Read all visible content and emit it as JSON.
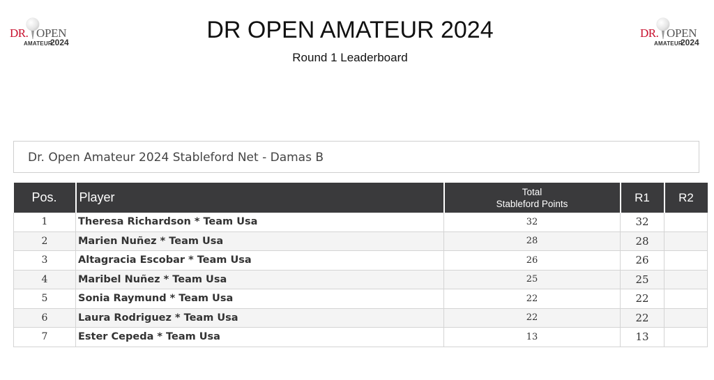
{
  "logo": {
    "dr": "DR.",
    "open": "OPEN",
    "amateur": "AMATEUR",
    "year": "2024"
  },
  "header": {
    "title": "DR OPEN AMATEUR 2024",
    "subtitle": "Round 1 Leaderboard"
  },
  "section": {
    "title": "Dr. Open Amateur 2024 Stableford Net - Damas B"
  },
  "table": {
    "columns": {
      "pos": "Pos.",
      "player": "Player",
      "total_line1": "Total",
      "total_line2": "Stableford Points",
      "r1": "R1",
      "r2": "R2"
    },
    "rows": [
      {
        "pos": "1",
        "player": "Theresa Richardson * Team Usa",
        "total": "32",
        "r1": "32",
        "r2": ""
      },
      {
        "pos": "2",
        "player": "Marien Nuñez * Team Usa",
        "total": "28",
        "r1": "28",
        "r2": ""
      },
      {
        "pos": "3",
        "player": "Altagracia Escobar * Team Usa",
        "total": "26",
        "r1": "26",
        "r2": ""
      },
      {
        "pos": "4",
        "player": "Maribel Nuñez * Team Usa",
        "total": "25",
        "r1": "25",
        "r2": ""
      },
      {
        "pos": "5",
        "player": "Sonia Raymund * Team Usa",
        "total": "22",
        "r1": "22",
        "r2": ""
      },
      {
        "pos": "6",
        "player": "Laura Rodriguez * Team Usa",
        "total": "22",
        "r1": "22",
        "r2": ""
      },
      {
        "pos": "7",
        "player": "Ester Cepeda * Team Usa",
        "total": "13",
        "r1": "13",
        "r2": ""
      }
    ]
  },
  "colors": {
    "header_bg": "#3a3a3c",
    "brand_red": "#c8102e"
  }
}
